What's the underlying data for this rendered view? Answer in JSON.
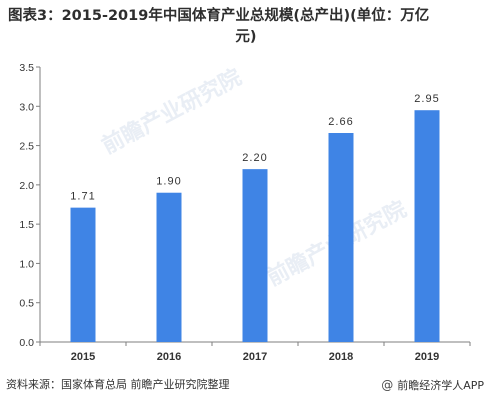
{
  "chart_data": {
    "type": "bar",
    "title": "图表3：2015-2019年中国体育产业总规模(总产出)(单位：万亿元)",
    "categories": [
      "2015",
      "2016",
      "2017",
      "2018",
      "2019"
    ],
    "series": [
      {
        "values": [
          1.71,
          1.9,
          2.2,
          2.66,
          2.95
        ]
      }
    ],
    "data_labels": [
      "1.71",
      "1.90",
      "2.20",
      "2.66",
      "2.95"
    ],
    "y_ticks": [
      "0.0",
      "0.5",
      "1.0",
      "1.5",
      "2.0",
      "2.5",
      "3.0",
      "3.5"
    ],
    "ylim": [
      0,
      3.5
    ],
    "xlabel": "",
    "ylabel": "",
    "grid": false,
    "legend": false,
    "bar_color": "#3f84e5"
  },
  "header": {
    "title_line1": "图表3：2015-2019年中国体育产业总规模(总产出)(单位：万亿",
    "title_line2": "元)"
  },
  "footer": {
    "source": "资料来源：国家体育总局 前瞻产业研究院整理",
    "brand": "前瞻经济学人APP",
    "brand_icon": "at-icon"
  },
  "watermark": {
    "text": "前瞻产业研究院"
  }
}
